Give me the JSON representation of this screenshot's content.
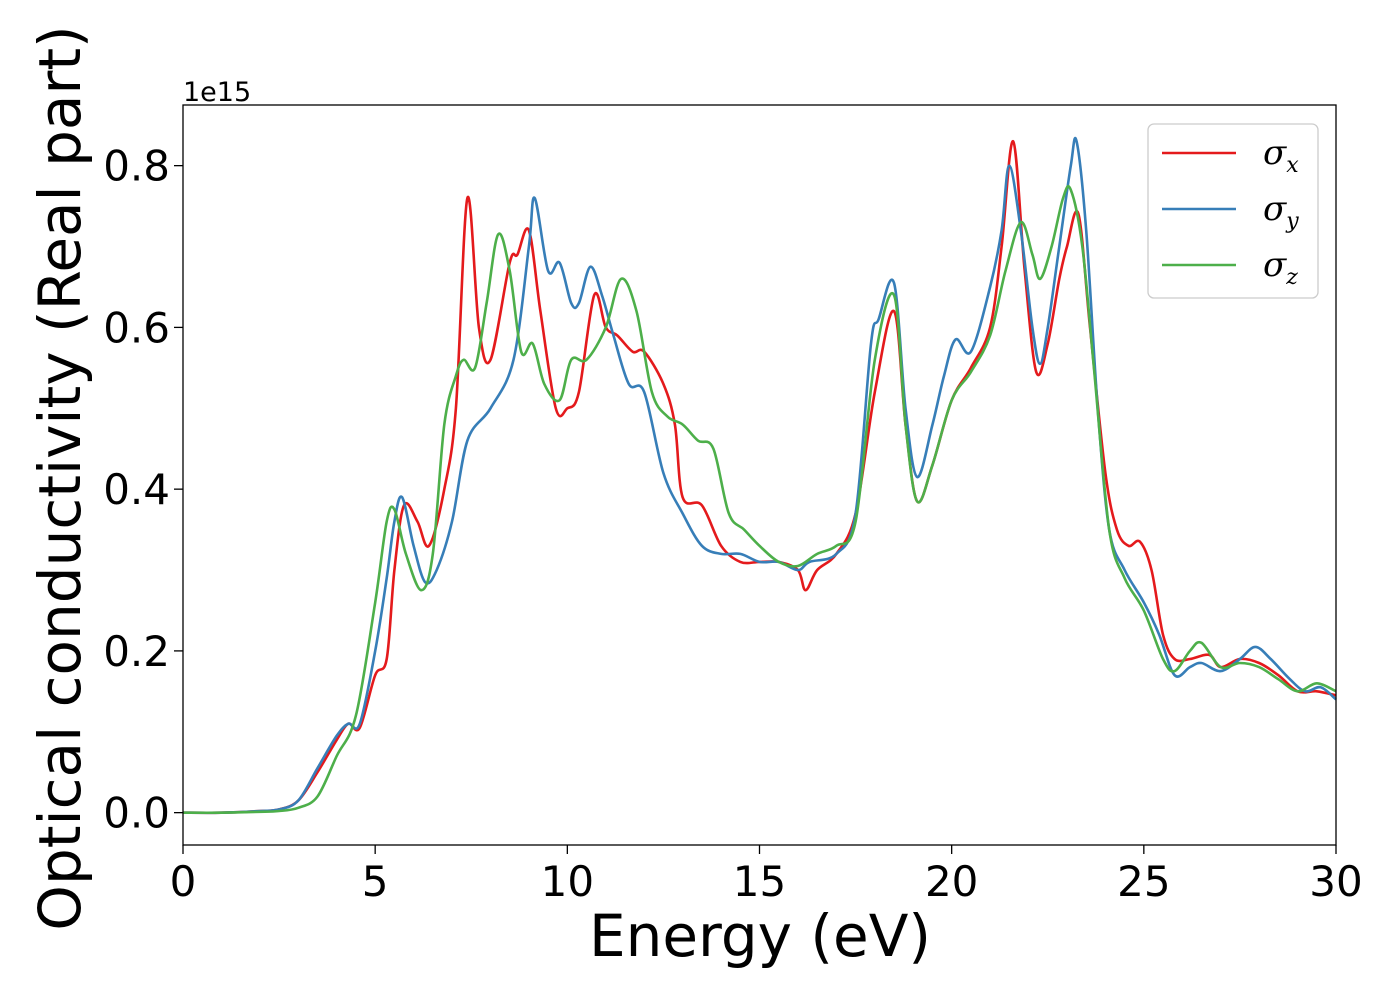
{
  "chart_data": {
    "type": "line",
    "title": "",
    "xlabel": "Energy (eV)",
    "ylabel": "Optical conductivity (Real part)",
    "y_offset_label": "1e15",
    "xlim": [
      0,
      30
    ],
    "ylim": [
      -0.04,
      0.875
    ],
    "x_ticks": [
      0,
      5,
      10,
      15,
      20,
      25,
      30
    ],
    "x_tick_labels": [
      "0",
      "5",
      "10",
      "15",
      "20",
      "25",
      "30"
    ],
    "y_ticks": [
      0.0,
      0.2,
      0.4,
      0.6,
      0.8
    ],
    "y_tick_labels": [
      "0.0",
      "0.2",
      "0.4",
      "0.6",
      "0.8"
    ],
    "grid": false,
    "legend_position": "top-right",
    "series": [
      {
        "name": "σx",
        "label_main": "σ",
        "label_sub": "x",
        "color": "#e41a1c",
        "points": [
          [
            0,
            0
          ],
          [
            1,
            0
          ],
          [
            2,
            0.002
          ],
          [
            2.5,
            0.004
          ],
          [
            3,
            0.015
          ],
          [
            3.5,
            0.05
          ],
          [
            4,
            0.09
          ],
          [
            4.3,
            0.11
          ],
          [
            4.6,
            0.105
          ],
          [
            5,
            0.17
          ],
          [
            5.3,
            0.19
          ],
          [
            5.5,
            0.3
          ],
          [
            5.75,
            0.38
          ],
          [
            6.1,
            0.36
          ],
          [
            6.4,
            0.33
          ],
          [
            6.8,
            0.4
          ],
          [
            7.1,
            0.5
          ],
          [
            7.4,
            0.76
          ],
          [
            7.7,
            0.6
          ],
          [
            8,
            0.56
          ],
          [
            8.5,
            0.68
          ],
          [
            8.7,
            0.69
          ],
          [
            9,
            0.72
          ],
          [
            9.3,
            0.62
          ],
          [
            9.7,
            0.5
          ],
          [
            10,
            0.5
          ],
          [
            10.3,
            0.52
          ],
          [
            10.7,
            0.64
          ],
          [
            11,
            0.6
          ],
          [
            11.3,
            0.59
          ],
          [
            11.7,
            0.57
          ],
          [
            12,
            0.57
          ],
          [
            12.5,
            0.53
          ],
          [
            12.8,
            0.48
          ],
          [
            13,
            0.39
          ],
          [
            13.5,
            0.38
          ],
          [
            14,
            0.33
          ],
          [
            14.5,
            0.31
          ],
          [
            15,
            0.31
          ],
          [
            15.5,
            0.31
          ],
          [
            16,
            0.3
          ],
          [
            16.2,
            0.275
          ],
          [
            16.5,
            0.3
          ],
          [
            17,
            0.32
          ],
          [
            17.5,
            0.37
          ],
          [
            18,
            0.52
          ],
          [
            18.5,
            0.62
          ],
          [
            18.8,
            0.48
          ],
          [
            19.1,
            0.385
          ],
          [
            19.5,
            0.43
          ],
          [
            20,
            0.51
          ],
          [
            20.5,
            0.55
          ],
          [
            21,
            0.6
          ],
          [
            21.3,
            0.7
          ],
          [
            21.6,
            0.83
          ],
          [
            21.9,
            0.67
          ],
          [
            22.2,
            0.545
          ],
          [
            22.5,
            0.58
          ],
          [
            22.8,
            0.66
          ],
          [
            23,
            0.7
          ],
          [
            23.3,
            0.74
          ],
          [
            23.6,
            0.6
          ],
          [
            24,
            0.42
          ],
          [
            24.3,
            0.35
          ],
          [
            24.6,
            0.33
          ],
          [
            24.9,
            0.335
          ],
          [
            25.2,
            0.3
          ],
          [
            25.5,
            0.22
          ],
          [
            25.8,
            0.19
          ],
          [
            26.2,
            0.19
          ],
          [
            26.7,
            0.195
          ],
          [
            27,
            0.18
          ],
          [
            27.5,
            0.19
          ],
          [
            28,
            0.185
          ],
          [
            28.5,
            0.17
          ],
          [
            29,
            0.15
          ],
          [
            29.5,
            0.15
          ],
          [
            30,
            0.145
          ]
        ]
      },
      {
        "name": "σy",
        "label_main": "σ",
        "label_sub": "y",
        "color": "#377eb8",
        "points": [
          [
            0,
            0
          ],
          [
            1,
            0
          ],
          [
            2,
            0.002
          ],
          [
            2.5,
            0.004
          ],
          [
            3,
            0.015
          ],
          [
            3.5,
            0.055
          ],
          [
            4,
            0.095
          ],
          [
            4.3,
            0.11
          ],
          [
            4.6,
            0.11
          ],
          [
            5,
            0.2
          ],
          [
            5.3,
            0.29
          ],
          [
            5.5,
            0.36
          ],
          [
            5.7,
            0.39
          ],
          [
            6,
            0.33
          ],
          [
            6.3,
            0.285
          ],
          [
            6.6,
            0.3
          ],
          [
            7,
            0.36
          ],
          [
            7.4,
            0.46
          ],
          [
            8,
            0.5
          ],
          [
            8.6,
            0.56
          ],
          [
            9,
            0.7
          ],
          [
            9.15,
            0.76
          ],
          [
            9.5,
            0.67
          ],
          [
            9.8,
            0.68
          ],
          [
            10.1,
            0.63
          ],
          [
            10.3,
            0.63
          ],
          [
            10.6,
            0.675
          ],
          [
            10.9,
            0.64
          ],
          [
            11.2,
            0.59
          ],
          [
            11.6,
            0.53
          ],
          [
            12,
            0.52
          ],
          [
            12.5,
            0.42
          ],
          [
            13,
            0.37
          ],
          [
            13.5,
            0.33
          ],
          [
            14,
            0.32
          ],
          [
            14.5,
            0.32
          ],
          [
            15,
            0.31
          ],
          [
            15.5,
            0.31
          ],
          [
            16,
            0.3
          ],
          [
            16.3,
            0.31
          ],
          [
            17,
            0.32
          ],
          [
            17.5,
            0.37
          ],
          [
            17.9,
            0.58
          ],
          [
            18.1,
            0.61
          ],
          [
            18.5,
            0.655
          ],
          [
            18.8,
            0.5
          ],
          [
            19.1,
            0.415
          ],
          [
            19.5,
            0.48
          ],
          [
            19.8,
            0.54
          ],
          [
            20.1,
            0.585
          ],
          [
            20.5,
            0.57
          ],
          [
            21,
            0.65
          ],
          [
            21.3,
            0.72
          ],
          [
            21.5,
            0.8
          ],
          [
            21.8,
            0.72
          ],
          [
            22.1,
            0.6
          ],
          [
            22.3,
            0.555
          ],
          [
            22.5,
            0.6
          ],
          [
            22.8,
            0.7
          ],
          [
            23.1,
            0.8
          ],
          [
            23.25,
            0.83
          ],
          [
            23.5,
            0.72
          ],
          [
            23.8,
            0.5
          ],
          [
            24.1,
            0.35
          ],
          [
            24.5,
            0.3
          ],
          [
            25,
            0.26
          ],
          [
            25.4,
            0.22
          ],
          [
            25.8,
            0.17
          ],
          [
            26.2,
            0.18
          ],
          [
            26.5,
            0.185
          ],
          [
            27,
            0.175
          ],
          [
            27.5,
            0.19
          ],
          [
            27.9,
            0.205
          ],
          [
            28.3,
            0.19
          ],
          [
            28.8,
            0.165
          ],
          [
            29.2,
            0.15
          ],
          [
            29.6,
            0.155
          ],
          [
            30,
            0.14
          ]
        ]
      },
      {
        "name": "σz",
        "label_main": "σ",
        "label_sub": "z",
        "color": "#4daf4a",
        "points": [
          [
            0,
            0
          ],
          [
            1,
            0
          ],
          [
            2,
            0.001
          ],
          [
            2.5,
            0.002
          ],
          [
            3,
            0.006
          ],
          [
            3.5,
            0.02
          ],
          [
            4,
            0.07
          ],
          [
            4.5,
            0.12
          ],
          [
            5,
            0.26
          ],
          [
            5.3,
            0.36
          ],
          [
            5.5,
            0.375
          ],
          [
            5.8,
            0.32
          ],
          [
            6.2,
            0.275
          ],
          [
            6.5,
            0.32
          ],
          [
            6.8,
            0.48
          ],
          [
            7.1,
            0.54
          ],
          [
            7.3,
            0.56
          ],
          [
            7.6,
            0.55
          ],
          [
            7.9,
            0.63
          ],
          [
            8.2,
            0.715
          ],
          [
            8.5,
            0.67
          ],
          [
            8.8,
            0.57
          ],
          [
            9.1,
            0.58
          ],
          [
            9.4,
            0.53
          ],
          [
            9.8,
            0.51
          ],
          [
            10.1,
            0.56
          ],
          [
            10.5,
            0.56
          ],
          [
            11,
            0.6
          ],
          [
            11.4,
            0.66
          ],
          [
            11.8,
            0.62
          ],
          [
            12.2,
            0.52
          ],
          [
            12.6,
            0.49
          ],
          [
            13,
            0.48
          ],
          [
            13.4,
            0.46
          ],
          [
            13.8,
            0.45
          ],
          [
            14.2,
            0.37
          ],
          [
            14.6,
            0.35
          ],
          [
            15,
            0.33
          ],
          [
            15.5,
            0.31
          ],
          [
            16,
            0.305
          ],
          [
            16.5,
            0.32
          ],
          [
            17,
            0.33
          ],
          [
            17.5,
            0.36
          ],
          [
            18,
            0.56
          ],
          [
            18.5,
            0.64
          ],
          [
            18.8,
            0.48
          ],
          [
            19.1,
            0.385
          ],
          [
            19.5,
            0.43
          ],
          [
            20,
            0.51
          ],
          [
            20.5,
            0.545
          ],
          [
            21,
            0.59
          ],
          [
            21.4,
            0.67
          ],
          [
            21.8,
            0.73
          ],
          [
            22.1,
            0.69
          ],
          [
            22.3,
            0.66
          ],
          [
            22.6,
            0.7
          ],
          [
            22.9,
            0.76
          ],
          [
            23.1,
            0.77
          ],
          [
            23.4,
            0.7
          ],
          [
            23.7,
            0.55
          ],
          [
            24.1,
            0.35
          ],
          [
            24.5,
            0.29
          ],
          [
            25,
            0.25
          ],
          [
            25.5,
            0.19
          ],
          [
            25.8,
            0.175
          ],
          [
            26.2,
            0.2
          ],
          [
            26.5,
            0.21
          ],
          [
            27,
            0.18
          ],
          [
            27.5,
            0.185
          ],
          [
            28,
            0.18
          ],
          [
            28.5,
            0.165
          ],
          [
            29,
            0.15
          ],
          [
            29.5,
            0.16
          ],
          [
            30,
            0.15
          ]
        ]
      }
    ]
  }
}
